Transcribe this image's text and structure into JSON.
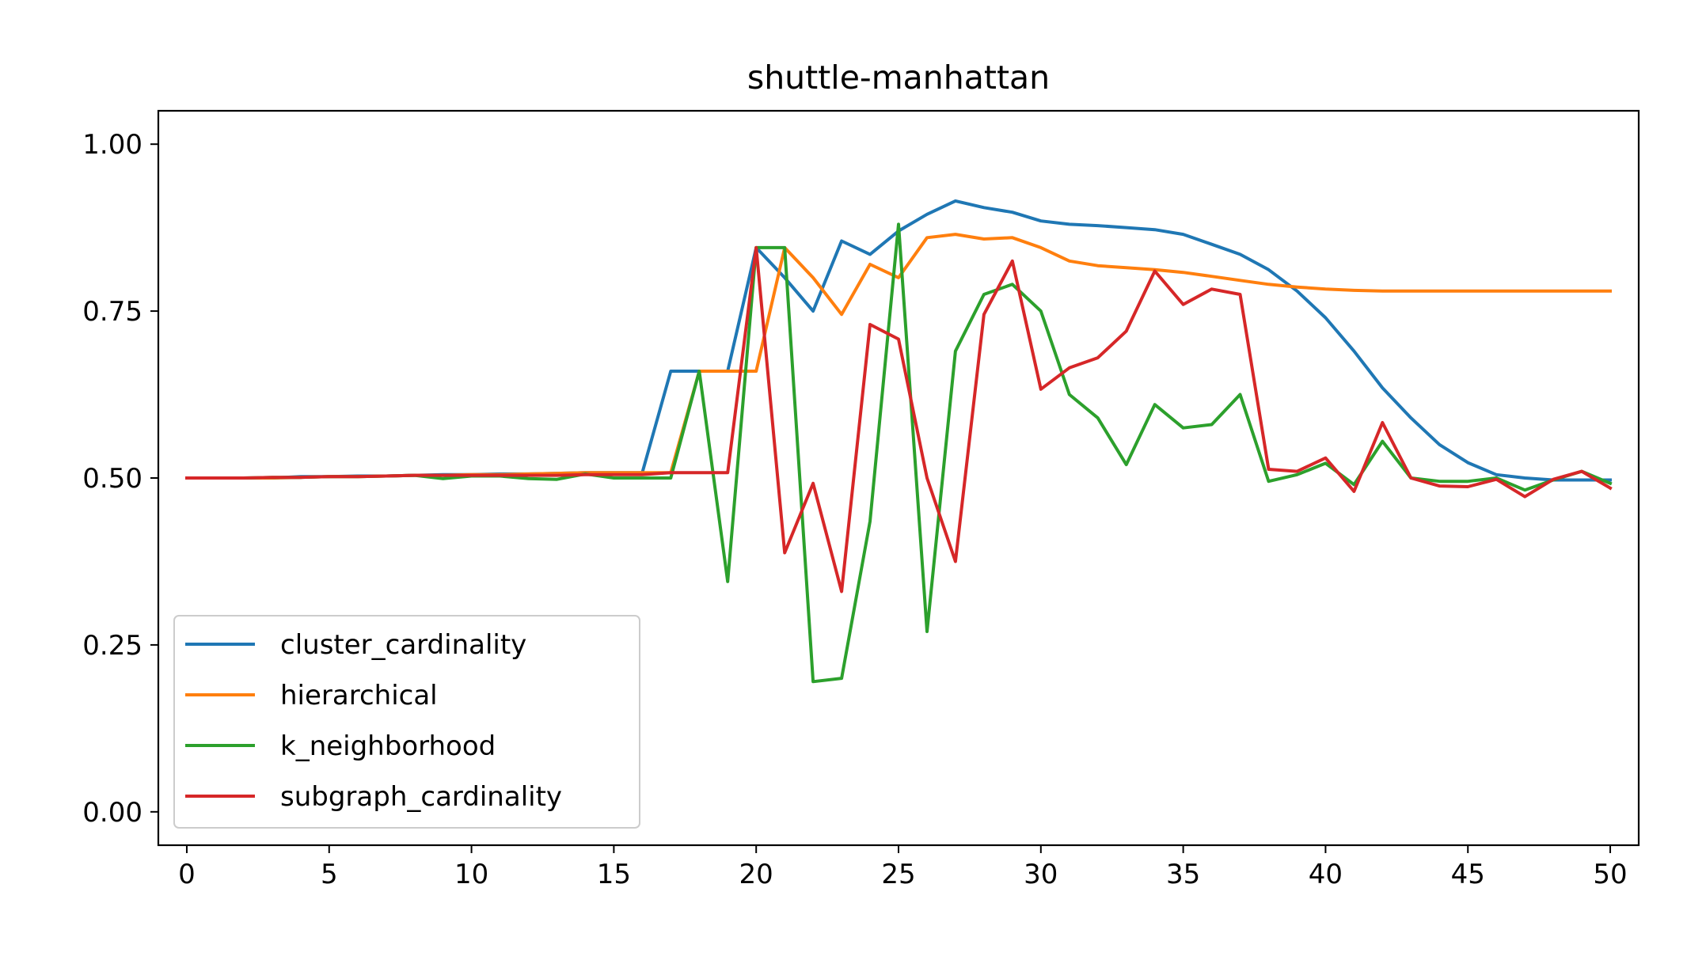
{
  "chart_data": {
    "type": "line",
    "title": "shuttle-manhattan",
    "xlabel": "",
    "ylabel": "",
    "xlim": [
      -1,
      51
    ],
    "ylim": [
      -0.05,
      1.05
    ],
    "x_ticks": [
      0,
      5,
      10,
      15,
      20,
      25,
      30,
      35,
      40,
      45,
      50
    ],
    "y_ticks": [
      0.0,
      0.25,
      0.5,
      0.75,
      1.0
    ],
    "y_tick_labels": [
      "0.00",
      "0.25",
      "0.50",
      "0.75",
      "1.00"
    ],
    "legend_position": "lower-left",
    "grid": false,
    "x": [
      0,
      1,
      2,
      3,
      4,
      5,
      6,
      7,
      8,
      9,
      10,
      11,
      12,
      13,
      14,
      15,
      16,
      17,
      18,
      19,
      20,
      21,
      22,
      23,
      24,
      25,
      26,
      27,
      28,
      29,
      30,
      31,
      32,
      33,
      34,
      35,
      36,
      37,
      38,
      39,
      40,
      41,
      42,
      43,
      44,
      45,
      46,
      47,
      48,
      49,
      50
    ],
    "series": [
      {
        "name": "cluster_cardinality",
        "color": "#1f77b4",
        "values": [
          0.5,
          0.5,
          0.5,
          0.5,
          0.502,
          0.502,
          0.503,
          0.503,
          0.504,
          0.505,
          0.505,
          0.506,
          0.506,
          0.507,
          0.508,
          0.508,
          0.508,
          0.66,
          0.66,
          0.66,
          0.845,
          0.8,
          0.75,
          0.855,
          0.835,
          0.87,
          0.895,
          0.915,
          0.905,
          0.898,
          0.885,
          0.88,
          0.878,
          0.875,
          0.872,
          0.865,
          0.85,
          0.835,
          0.812,
          0.78,
          0.74,
          0.69,
          0.635,
          0.59,
          0.55,
          0.523,
          0.505,
          0.5,
          0.497,
          0.497,
          0.497
        ]
      },
      {
        "name": "hierarchical",
        "color": "#ff7f0e",
        "values": [
          0.5,
          0.5,
          0.5,
          0.5,
          0.501,
          0.502,
          0.502,
          0.503,
          0.504,
          0.504,
          0.505,
          0.505,
          0.506,
          0.507,
          0.508,
          0.508,
          0.508,
          0.508,
          0.66,
          0.66,
          0.66,
          0.845,
          0.8,
          0.745,
          0.82,
          0.8,
          0.86,
          0.865,
          0.858,
          0.86,
          0.845,
          0.825,
          0.818,
          0.815,
          0.812,
          0.808,
          0.802,
          0.796,
          0.79,
          0.786,
          0.783,
          0.781,
          0.78,
          0.78,
          0.78,
          0.78,
          0.78,
          0.78,
          0.78,
          0.78,
          0.78
        ]
      },
      {
        "name": "k_neighborhood",
        "color": "#2ca02c",
        "values": [
          0.5,
          0.5,
          0.5,
          0.501,
          0.501,
          0.502,
          0.502,
          0.503,
          0.504,
          0.499,
          0.503,
          0.503,
          0.499,
          0.498,
          0.506,
          0.5,
          0.5,
          0.5,
          0.66,
          0.345,
          0.845,
          0.845,
          0.195,
          0.2,
          0.435,
          0.88,
          0.27,
          0.69,
          0.775,
          0.79,
          0.75,
          0.625,
          0.59,
          0.52,
          0.61,
          0.575,
          0.58,
          0.625,
          0.495,
          0.505,
          0.522,
          0.49,
          0.555,
          0.5,
          0.495,
          0.495,
          0.5,
          0.482,
          0.497,
          0.51,
          0.492
        ]
      },
      {
        "name": "subgraph_cardinality",
        "color": "#d62728",
        "values": [
          0.5,
          0.5,
          0.5,
          0.501,
          0.501,
          0.502,
          0.502,
          0.503,
          0.504,
          0.504,
          0.504,
          0.504,
          0.504,
          0.504,
          0.505,
          0.505,
          0.505,
          0.508,
          0.508,
          0.508,
          0.845,
          0.388,
          0.492,
          0.33,
          0.73,
          0.708,
          0.5,
          0.375,
          0.745,
          0.825,
          0.633,
          0.665,
          0.68,
          0.72,
          0.81,
          0.76,
          0.783,
          0.775,
          0.513,
          0.51,
          0.53,
          0.48,
          0.583,
          0.5,
          0.488,
          0.487,
          0.498,
          0.472,
          0.498,
          0.51,
          0.485
        ]
      }
    ]
  }
}
